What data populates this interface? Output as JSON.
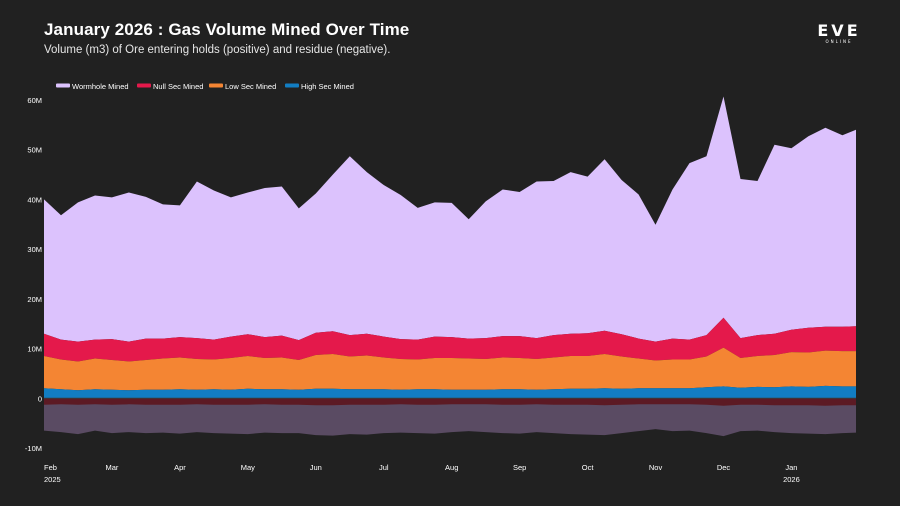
{
  "header": {
    "title": "January 2026 : Gas Volume Mined Over Time",
    "subtitle": "Volume (m3) of Ore entering holds (positive) and residue (negative).",
    "logo_text": "EVE",
    "logo_subtext": "ONLINE"
  },
  "colors": {
    "background": "#212121",
    "wormhole": "#dcc2fd",
    "null_sec": "#e4194b",
    "low_sec": "#f48533",
    "high_sec": "#127dc2",
    "residue_total": "#5a4b63",
    "residue_inner": "#5c1a24"
  },
  "chart_data": {
    "type": "area",
    "stacked": true,
    "title": "January 2026 : Gas Volume Mined Over Time",
    "subtitle": "Volume (m3) of Ore entering holds (positive) and residue (negative).",
    "xlabel": "",
    "ylabel": "",
    "ylim": [
      -10,
      60
    ],
    "yunit": "M",
    "grid": false,
    "legend_position": "top-left",
    "yticks": [
      {
        "value": 60,
        "label": "60M"
      },
      {
        "value": 50,
        "label": "50M"
      },
      {
        "value": 40,
        "label": "40M"
      },
      {
        "value": 30,
        "label": "30M"
      },
      {
        "value": 20,
        "label": "20M"
      },
      {
        "value": 10,
        "label": "10M"
      },
      {
        "value": 0,
        "label": "0"
      },
      {
        "value": -10,
        "label": "-10M"
      }
    ],
    "xticks": [
      {
        "month": 0,
        "label": "Feb",
        "sublabel": "2025"
      },
      {
        "month": 1,
        "label": "Mar",
        "sublabel": ""
      },
      {
        "month": 2,
        "label": "Apr",
        "sublabel": ""
      },
      {
        "month": 3,
        "label": "May",
        "sublabel": ""
      },
      {
        "month": 4,
        "label": "Jun",
        "sublabel": ""
      },
      {
        "month": 5,
        "label": "Jul",
        "sublabel": ""
      },
      {
        "month": 6,
        "label": "Aug",
        "sublabel": ""
      },
      {
        "month": 7,
        "label": "Sep",
        "sublabel": ""
      },
      {
        "month": 8,
        "label": "Oct",
        "sublabel": ""
      },
      {
        "month": 9,
        "label": "Nov",
        "sublabel": ""
      },
      {
        "month": 10,
        "label": "Dec",
        "sublabel": ""
      },
      {
        "month": 11,
        "label": "Jan",
        "sublabel": "2026"
      }
    ],
    "x_months_elapsed": [
      0,
      0.25,
      0.5,
      0.75,
      1,
      1.25,
      1.5,
      1.75,
      2,
      2.25,
      2.5,
      2.75,
      3,
      3.25,
      3.5,
      3.75,
      4,
      4.25,
      4.5,
      4.75,
      5,
      5.25,
      5.5,
      5.75,
      6,
      6.25,
      6.5,
      6.75,
      7,
      7.25,
      7.5,
      7.75,
      8,
      8.25,
      8.5,
      8.75,
      9,
      9.25,
      9.5,
      9.75,
      10,
      10.25,
      10.5,
      10.75,
      11,
      11.25,
      11.5,
      11.75,
      11.95
    ],
    "series": [
      {
        "name": "High Sec Mined",
        "key": "high_sec",
        "values": [
          2.0,
          1.8,
          1.6,
          1.8,
          1.7,
          1.6,
          1.7,
          1.7,
          1.8,
          1.7,
          1.8,
          1.7,
          1.9,
          1.8,
          1.8,
          1.7,
          1.9,
          1.9,
          1.8,
          1.8,
          1.8,
          1.7,
          1.8,
          1.8,
          1.7,
          1.7,
          1.7,
          1.8,
          1.8,
          1.7,
          1.8,
          1.9,
          1.9,
          2.0,
          1.9,
          2.0,
          2.0,
          2.0,
          2.0,
          2.2,
          2.4,
          2.1,
          2.3,
          2.2,
          2.4,
          2.3,
          2.5,
          2.4,
          2.4
        ]
      },
      {
        "name": "Low Sec Mined",
        "key": "low_sec",
        "values": [
          6.5,
          6.0,
          5.8,
          6.2,
          6.0,
          5.8,
          6.0,
          6.3,
          6.4,
          6.2,
          6.0,
          6.4,
          6.6,
          6.3,
          6.4,
          6.0,
          6.8,
          7.0,
          6.6,
          6.8,
          6.4,
          6.2,
          6.0,
          6.3,
          6.4,
          6.3,
          6.2,
          6.4,
          6.3,
          6.2,
          6.4,
          6.6,
          6.6,
          6.9,
          6.5,
          6.0,
          5.6,
          5.8,
          5.8,
          6.2,
          7.8,
          6.0,
          6.2,
          6.5,
          6.9,
          6.9,
          7.1,
          7.1,
          7.1
        ]
      },
      {
        "name": "Null Sec Mined",
        "key": "null_sec",
        "values": [
          4.5,
          4.0,
          4.0,
          3.8,
          4.2,
          4.0,
          4.3,
          4.0,
          4.1,
          4.2,
          4.0,
          4.3,
          4.4,
          4.2,
          4.4,
          4.0,
          4.5,
          4.6,
          4.3,
          4.4,
          4.2,
          4.0,
          4.0,
          4.3,
          4.2,
          4.0,
          4.2,
          4.3,
          4.4,
          4.2,
          4.5,
          4.5,
          4.6,
          4.7,
          4.5,
          4.0,
          3.8,
          4.2,
          4.0,
          4.3,
          6.0,
          4.0,
          4.2,
          4.3,
          4.5,
          5.0,
          4.8,
          4.9,
          5.0
        ]
      },
      {
        "name": "Wormhole Mined",
        "key": "wormhole",
        "values": [
          27.0,
          25.0,
          28.0,
          29.0,
          28.5,
          30.0,
          28.5,
          27.0,
          26.5,
          31.5,
          30.0,
          28.0,
          28.5,
          30.0,
          30.0,
          26.5,
          28.0,
          31.5,
          36.0,
          32.5,
          30.5,
          29.0,
          26.5,
          27.0,
          27.0,
          24.0,
          27.5,
          29.5,
          29.0,
          31.5,
          31.0,
          32.5,
          31.5,
          34.5,
          31.0,
          29.0,
          23.5,
          30.0,
          35.5,
          36.0,
          44.5,
          32.0,
          31.0,
          38.0,
          36.5,
          38.5,
          40.0,
          38.5,
          39.5
        ]
      },
      {
        "name": "Residue",
        "key": "residue_total",
        "legend": false,
        "values": [
          -6.5,
          -6.8,
          -7.2,
          -6.5,
          -7.0,
          -6.8,
          -7.0,
          -6.9,
          -7.1,
          -6.8,
          -7.0,
          -7.1,
          -7.2,
          -6.9,
          -7.0,
          -7.0,
          -7.4,
          -7.5,
          -7.2,
          -7.3,
          -7.0,
          -6.9,
          -7.0,
          -7.1,
          -6.8,
          -6.6,
          -6.8,
          -7.0,
          -7.1,
          -6.8,
          -7.0,
          -7.2,
          -7.3,
          -7.4,
          -7.0,
          -6.6,
          -6.2,
          -6.6,
          -6.5,
          -7.0,
          -7.6,
          -6.6,
          -6.5,
          -6.8,
          -7.0,
          -7.1,
          -7.2,
          -7.0,
          -6.9
        ]
      },
      {
        "name": "Residue (inner)",
        "key": "residue_inner",
        "legend": false,
        "values": [
          -1.3,
          -1.2,
          -1.3,
          -1.2,
          -1.3,
          -1.2,
          -1.3,
          -1.3,
          -1.3,
          -1.2,
          -1.3,
          -1.3,
          -1.3,
          -1.2,
          -1.3,
          -1.3,
          -1.4,
          -1.4,
          -1.3,
          -1.3,
          -1.3,
          -1.2,
          -1.3,
          -1.3,
          -1.2,
          -1.2,
          -1.2,
          -1.3,
          -1.3,
          -1.2,
          -1.3,
          -1.3,
          -1.3,
          -1.4,
          -1.3,
          -1.2,
          -1.2,
          -1.2,
          -1.2,
          -1.3,
          -1.5,
          -1.3,
          -1.3,
          -1.4,
          -1.4,
          -1.4,
          -1.5,
          -1.4,
          -1.4
        ]
      }
    ],
    "legend": [
      {
        "label": "Wormhole Mined",
        "key": "wormhole"
      },
      {
        "label": "Null Sec Mined",
        "key": "null_sec"
      },
      {
        "label": "Low Sec Mined",
        "key": "low_sec"
      },
      {
        "label": "High Sec Mined",
        "key": "high_sec"
      }
    ]
  }
}
